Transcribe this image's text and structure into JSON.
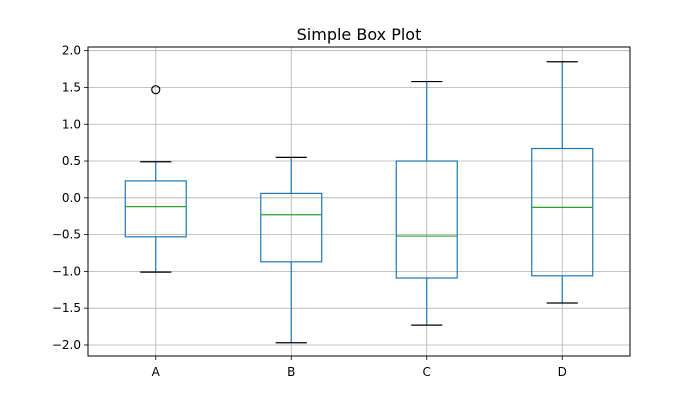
{
  "chart_data": {
    "type": "box",
    "title": "Simple Box Plot",
    "xlabel": "",
    "ylabel": "",
    "categories": [
      "A",
      "B",
      "C",
      "D"
    ],
    "ylim": [
      -2.15,
      2.05
    ],
    "yticks": [
      -2.0,
      -1.5,
      -1.0,
      -0.5,
      0.0,
      0.5,
      1.0,
      1.5,
      2.0
    ],
    "ytick_labels": [
      "−2.0",
      "−1.5",
      "−1.0",
      "−0.5",
      "0.0",
      "0.5",
      "1.0",
      "1.5",
      "2.0"
    ],
    "grid": true,
    "legend": "none",
    "boxes": [
      {
        "label": "A",
        "whislo": -1.01,
        "q1": -0.53,
        "med": -0.12,
        "q3": 0.23,
        "whishi": 0.49,
        "fliers": [
          1.47
        ]
      },
      {
        "label": "B",
        "whislo": -1.97,
        "q1": -0.87,
        "med": -0.23,
        "q3": 0.06,
        "whishi": 0.55,
        "fliers": []
      },
      {
        "label": "C",
        "whislo": -1.73,
        "q1": -1.09,
        "med": -0.52,
        "q3": 0.5,
        "whishi": 1.58,
        "fliers": []
      },
      {
        "label": "D",
        "whislo": -1.43,
        "q1": -1.06,
        "med": -0.13,
        "q3": 0.67,
        "whishi": 1.85,
        "fliers": []
      }
    ],
    "colors": {
      "box": "#1f77b4",
      "median": "#2ca02c",
      "cap": "#000000",
      "flier": "#000000",
      "grid": "#b0b0b0"
    }
  }
}
